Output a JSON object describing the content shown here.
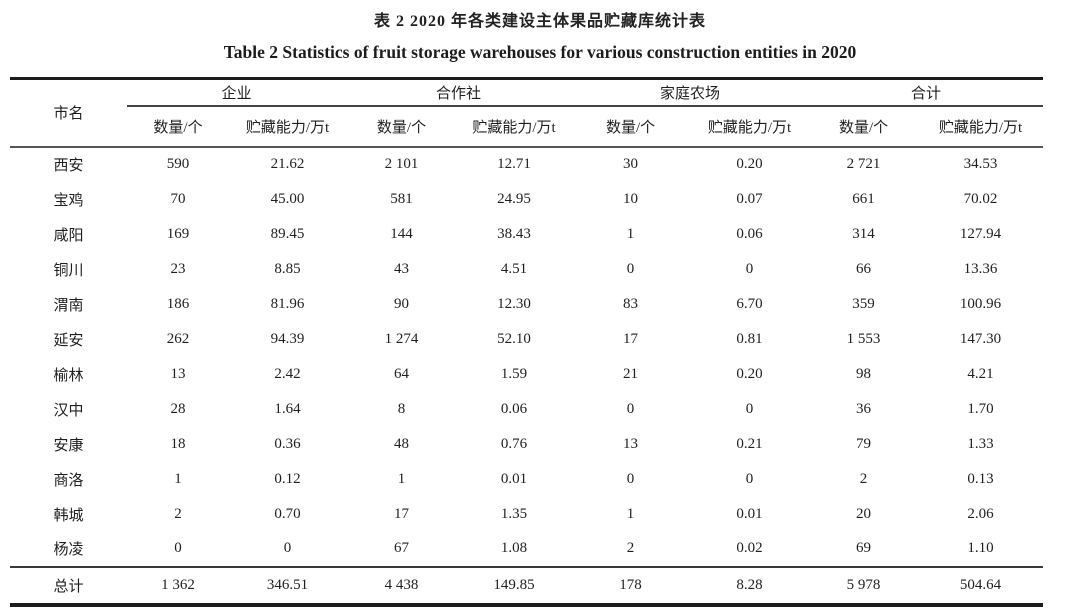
{
  "titles": {
    "chinese": "表 2 2020 年各类建设主体果品贮藏库统计表",
    "english": "Table 2 Statistics of fruit storage warehouses for various construction entities in 2020"
  },
  "table": {
    "city_header": "市名",
    "groups": [
      {
        "label": "企业"
      },
      {
        "label": "合作社"
      },
      {
        "label": "家庭农场"
      },
      {
        "label": "合计"
      }
    ],
    "sub_headers": {
      "qty": "数量/个",
      "cap": "贮藏能力/万t"
    },
    "rows": [
      {
        "city": "西安",
        "values": [
          "590",
          "21.62",
          "2 101",
          "12.71",
          "30",
          "0.20",
          "2 721",
          "34.53"
        ]
      },
      {
        "city": "宝鸡",
        "values": [
          "70",
          "45.00",
          "581",
          "24.95",
          "10",
          "0.07",
          "661",
          "70.02"
        ]
      },
      {
        "city": "咸阳",
        "values": [
          "169",
          "89.45",
          "144",
          "38.43",
          "1",
          "0.06",
          "314",
          "127.94"
        ]
      },
      {
        "city": "铜川",
        "values": [
          "23",
          "8.85",
          "43",
          "4.51",
          "0",
          "0",
          "66",
          "13.36"
        ]
      },
      {
        "city": "渭南",
        "values": [
          "186",
          "81.96",
          "90",
          "12.30",
          "83",
          "6.70",
          "359",
          "100.96"
        ]
      },
      {
        "city": "延安",
        "values": [
          "262",
          "94.39",
          "1 274",
          "52.10",
          "17",
          "0.81",
          "1 553",
          "147.30"
        ]
      },
      {
        "city": "榆林",
        "values": [
          "13",
          "2.42",
          "64",
          "1.59",
          "21",
          "0.20",
          "98",
          "4.21"
        ]
      },
      {
        "city": "汉中",
        "values": [
          "28",
          "1.64",
          "8",
          "0.06",
          "0",
          "0",
          "36",
          "1.70"
        ]
      },
      {
        "city": "安康",
        "values": [
          "18",
          "0.36",
          "48",
          "0.76",
          "13",
          "0.21",
          "79",
          "1.33"
        ]
      },
      {
        "city": "商洛",
        "values": [
          "1",
          "0.12",
          "1",
          "0.01",
          "0",
          "0",
          "2",
          "0.13"
        ]
      },
      {
        "city": "韩城",
        "values": [
          "2",
          "0.70",
          "17",
          "1.35",
          "1",
          "0.01",
          "20",
          "2.06"
        ]
      },
      {
        "city": "杨凌",
        "values": [
          "0",
          "0",
          "67",
          "1.08",
          "2",
          "0.02",
          "69",
          "1.10"
        ]
      }
    ],
    "total_row": {
      "city": "总计",
      "values": [
        "1 362",
        "346.51",
        "4 438",
        "149.85",
        "178",
        "8.28",
        "5 978",
        "504.64"
      ]
    }
  },
  "chart_data": {
    "type": "table",
    "title": "表 2 2020 年各类建设主体果品贮藏库统计表",
    "subtitle": "Table 2 Statistics of fruit storage warehouses for various construction entities in 2020",
    "column_groups": [
      "企业",
      "合作社",
      "家庭农场",
      "合计"
    ],
    "columns": [
      "市名",
      "企业 数量/个",
      "企业 贮藏能力/万t",
      "合作社 数量/个",
      "合作社 贮藏能力/万t",
      "家庭农场 数量/个",
      "家庭农场 贮藏能力/万t",
      "合计 数量/个",
      "合计 贮藏能力/万t"
    ],
    "rows": [
      [
        "西安",
        590,
        21.62,
        2101,
        12.71,
        30,
        0.2,
        2721,
        34.53
      ],
      [
        "宝鸡",
        70,
        45.0,
        581,
        24.95,
        10,
        0.07,
        661,
        70.02
      ],
      [
        "咸阳",
        169,
        89.45,
        144,
        38.43,
        1,
        0.06,
        314,
        127.94
      ],
      [
        "铜川",
        23,
        8.85,
        43,
        4.51,
        0,
        0,
        66,
        13.36
      ],
      [
        "渭南",
        186,
        81.96,
        90,
        12.3,
        83,
        6.7,
        359,
        100.96
      ],
      [
        "延安",
        262,
        94.39,
        1274,
        52.1,
        17,
        0.81,
        1553,
        147.3
      ],
      [
        "榆林",
        13,
        2.42,
        64,
        1.59,
        21,
        0.2,
        98,
        4.21
      ],
      [
        "汉中",
        28,
        1.64,
        8,
        0.06,
        0,
        0,
        36,
        1.7
      ],
      [
        "安康",
        18,
        0.36,
        48,
        0.76,
        13,
        0.21,
        79,
        1.33
      ],
      [
        "商洛",
        1,
        0.12,
        1,
        0.01,
        0,
        0,
        2,
        0.13
      ],
      [
        "韩城",
        2,
        0.7,
        17,
        1.35,
        1,
        0.01,
        20,
        2.06
      ],
      [
        "杨凌",
        0,
        0,
        67,
        1.08,
        2,
        0.02,
        69,
        1.1
      ]
    ],
    "total": [
      "总计",
      1362,
      346.51,
      4438,
      149.85,
      178,
      8.28,
      5978,
      504.64
    ]
  }
}
